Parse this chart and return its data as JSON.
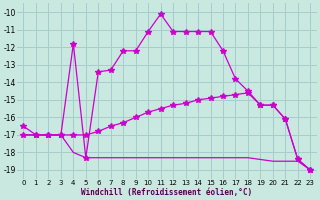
{
  "bg_color": "#c8e8e0",
  "grid_color": "#a8cccc",
  "line_color": "#cc00cc",
  "xlim": [
    -0.5,
    23.5
  ],
  "ylim": [
    -19.5,
    -9.5
  ],
  "xticks": [
    0,
    1,
    2,
    3,
    4,
    5,
    6,
    7,
    8,
    9,
    10,
    11,
    12,
    13,
    14,
    15,
    16,
    17,
    18,
    19,
    20,
    21,
    22,
    23
  ],
  "yticks": [
    -10,
    -11,
    -12,
    -13,
    -14,
    -15,
    -16,
    -17,
    -18,
    -19
  ],
  "xlabel": "Windchill (Refroidissement éolien,°C)",
  "curve1": {
    "x": [
      0,
      1,
      2,
      3,
      4,
      5,
      6,
      7,
      8,
      9,
      10,
      11,
      12,
      13,
      14,
      15,
      16,
      17,
      18,
      19,
      20,
      21,
      22,
      23
    ],
    "y": [
      -16.5,
      -17.0,
      -17.0,
      -17.0,
      -11.8,
      -18.3,
      -13.4,
      -13.3,
      -12.2,
      -12.2,
      -11.1,
      -10.1,
      -11.1,
      -11.1,
      -11.1,
      -11.1,
      -12.2,
      -13.8,
      -14.5,
      -15.3,
      -15.3,
      -16.1,
      -18.4,
      -19.0
    ]
  },
  "curve2": {
    "x": [
      0,
      1,
      2,
      3,
      4,
      5,
      6,
      7,
      8,
      9,
      10,
      11,
      12,
      13,
      14,
      15,
      16,
      17,
      18,
      19,
      20,
      21,
      22,
      23
    ],
    "y": [
      -17.0,
      -17.0,
      -17.0,
      -17.0,
      -17.0,
      -17.0,
      -16.8,
      -16.5,
      -16.3,
      -16.0,
      -15.7,
      -15.5,
      -15.3,
      -15.2,
      -15.0,
      -14.9,
      -14.8,
      -14.7,
      -14.6,
      -15.3,
      -15.3,
      -16.1,
      -18.4,
      -19.0
    ]
  },
  "curve3": {
    "x": [
      0,
      1,
      2,
      3,
      4,
      5,
      6,
      7,
      8,
      9,
      10,
      11,
      12,
      13,
      14,
      15,
      16,
      17,
      18,
      19,
      20,
      21,
      22,
      23
    ],
    "y": [
      -17.0,
      -17.0,
      -17.0,
      -17.0,
      -18.0,
      -18.3,
      -18.3,
      -18.3,
      -18.3,
      -18.3,
      -18.3,
      -18.3,
      -18.3,
      -18.3,
      -18.3,
      -18.3,
      -18.3,
      -18.3,
      -18.3,
      -18.4,
      -18.5,
      -18.5,
      -18.5,
      -19.0
    ]
  }
}
